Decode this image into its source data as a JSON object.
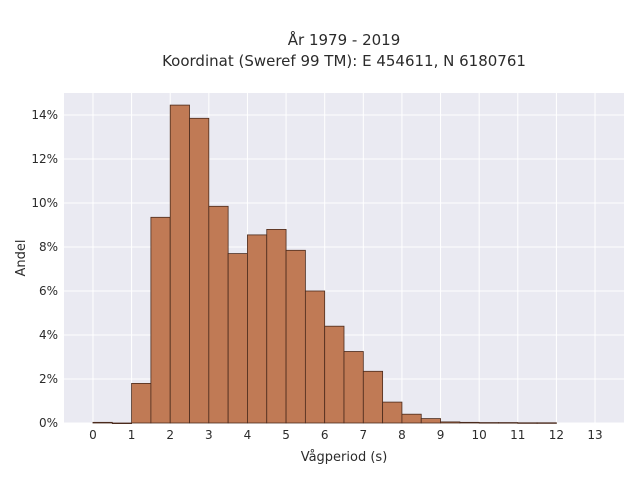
{
  "chart_data": {
    "type": "bar",
    "title_line1": "År 1979 - 2019",
    "title_line2": "Koordinat (Sweref 99 TM): E 454611, N 6180761",
    "xlabel": "Vågperiod (s)",
    "ylabel": "Andel",
    "xlim": [
      -0.75,
      13.75
    ],
    "ylim": [
      0,
      15
    ],
    "x_ticks": [
      0,
      1,
      2,
      3,
      4,
      5,
      6,
      7,
      8,
      9,
      10,
      11,
      12,
      13
    ],
    "y_ticks": [
      0,
      2,
      4,
      6,
      8,
      10,
      12,
      14
    ],
    "y_tick_suffix": "%",
    "grid": true,
    "bin_width": 0.5,
    "bins": [
      {
        "x0": 0.0,
        "value": 0.03
      },
      {
        "x0": 0.5,
        "value": 0.0
      },
      {
        "x0": 1.0,
        "value": 1.8
      },
      {
        "x0": 1.5,
        "value": 9.35
      },
      {
        "x0": 2.0,
        "value": 14.45
      },
      {
        "x0": 2.5,
        "value": 13.85
      },
      {
        "x0": 3.0,
        "value": 9.85
      },
      {
        "x0": 3.5,
        "value": 7.7
      },
      {
        "x0": 4.0,
        "value": 8.55
      },
      {
        "x0": 4.5,
        "value": 8.8
      },
      {
        "x0": 5.0,
        "value": 7.85
      },
      {
        "x0": 5.5,
        "value": 6.0
      },
      {
        "x0": 6.0,
        "value": 4.4
      },
      {
        "x0": 6.5,
        "value": 3.25
      },
      {
        "x0": 7.0,
        "value": 2.35
      },
      {
        "x0": 7.5,
        "value": 0.95
      },
      {
        "x0": 8.0,
        "value": 0.4
      },
      {
        "x0": 8.5,
        "value": 0.2
      },
      {
        "x0": 9.0,
        "value": 0.05
      },
      {
        "x0": 9.5,
        "value": 0.03
      },
      {
        "x0": 10.0,
        "value": 0.02
      },
      {
        "x0": 10.5,
        "value": 0.02
      },
      {
        "x0": 11.0,
        "value": 0.01
      },
      {
        "x0": 11.5,
        "value": 0.01
      }
    ],
    "colors": {
      "bar_fill": "#c07a55",
      "bar_stroke": "#4a2a1c",
      "plot_background": "#eaeaf2",
      "grid": "#ffffff"
    }
  }
}
